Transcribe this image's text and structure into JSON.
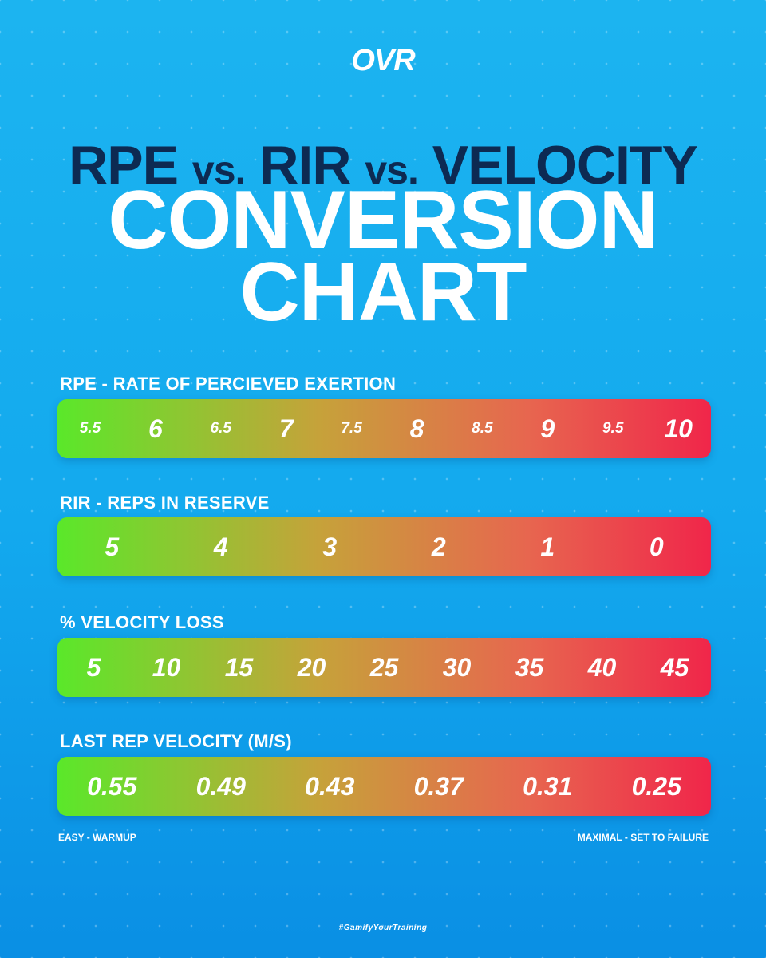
{
  "brand": {
    "logo": "OVR"
  },
  "title": {
    "line1_a": "RPE",
    "line1_vs1": "vs.",
    "line1_b": "RIR",
    "line1_vs2": "vs.",
    "line1_c": "VELOCITY",
    "line2": "CONVERSION",
    "line3": "CHART"
  },
  "sections": {
    "rpe": {
      "label": "RPE - RATE OF PERCIEVED EXERTION",
      "values": [
        "5.5",
        "6",
        "6.5",
        "7",
        "7.5",
        "8",
        "8.5",
        "9",
        "9.5",
        "10"
      ]
    },
    "rir": {
      "label": "RIR - REPS IN RESERVE",
      "values": [
        "5",
        "4",
        "3",
        "2",
        "1",
        "0"
      ]
    },
    "velocity_loss": {
      "label": "% VELOCITY LOSS",
      "values": [
        "5",
        "10",
        "15",
        "20",
        "25",
        "30",
        "35",
        "40",
        "45"
      ]
    },
    "last_rep": {
      "label": "LAST REP VELOCITY (M/S)",
      "values": [
        "0.55",
        "0.49",
        "0.43",
        "0.37",
        "0.31",
        "0.25"
      ]
    }
  },
  "footer": {
    "left": "EASY - WARMUP",
    "right": "MAXIMAL - SET TO FAILURE",
    "hashtag": "#GamifyYourTraining"
  },
  "colors": {
    "background": "#13a9ee",
    "title_dark": "#0d2a52",
    "gradient_start": "#5ae82a",
    "gradient_end": "#f0264a"
  }
}
